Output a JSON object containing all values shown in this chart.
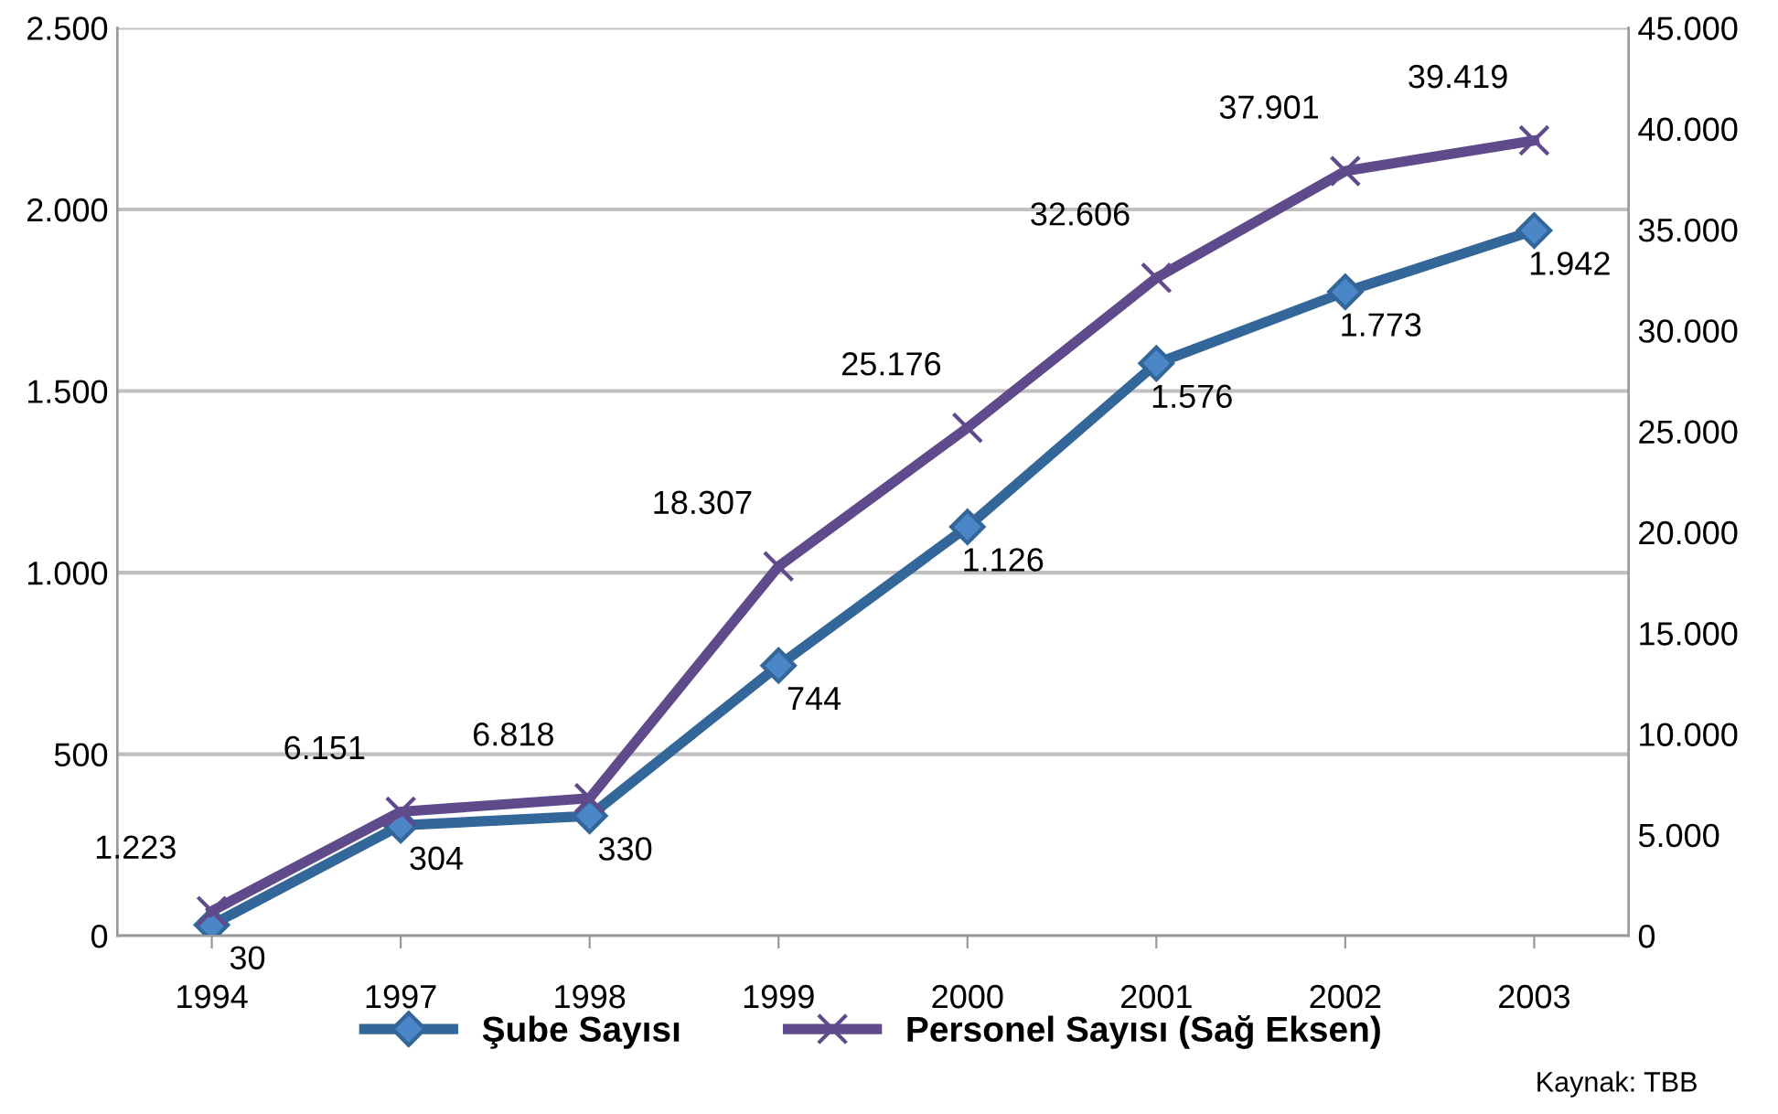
{
  "chart_data": {
    "type": "line",
    "categories": [
      "1994",
      "1997",
      "1998",
      "1999",
      "2000",
      "2001",
      "2002",
      "2003"
    ],
    "series": [
      {
        "name": "Şube Sayısı",
        "color": "#336699",
        "marker": "diamond",
        "values": [
          30,
          304,
          330,
          744,
          1126,
          1576,
          1773,
          1942
        ],
        "value_labels": [
          "30",
          "304",
          "330",
          "744",
          "1.126",
          "1.576",
          "1.773",
          "1.942"
        ]
      },
      {
        "name": "Personel Sayısı (Sağ Eksen)",
        "color": "#5f4b8b",
        "marker": "cross",
        "axis": "y2",
        "values": [
          1223,
          6151,
          6818,
          18307,
          25176,
          32606,
          37901,
          39419
        ],
        "value_labels": [
          "1.223",
          "6.151",
          "6.818",
          "18.307",
          "25.176",
          "32.606",
          "37.901",
          "39.419"
        ]
      }
    ],
    "ylim": [
      0,
      2500
    ],
    "yticks": [
      0,
      500,
      {
        "value": 1000,
        "label": "1.000"
      },
      {
        "value": 1500,
        "label": "1.500"
      },
      {
        "value": 2000,
        "label": "2.000"
      },
      {
        "value": 2500,
        "label": "2.500"
      }
    ],
    "y2lim": [
      0,
      45000
    ],
    "y2ticks": [
      0,
      {
        "value": 5000,
        "label": "5.000"
      },
      {
        "value": 10000,
        "label": "10.000"
      },
      {
        "value": 15000,
        "label": "15.000"
      },
      {
        "value": 20000,
        "label": "20.000"
      },
      {
        "value": 25000,
        "label": "25.000"
      },
      {
        "value": 30000,
        "label": "30.000"
      },
      {
        "value": 35000,
        "label": "35.000"
      },
      {
        "value": 40000,
        "label": "40.000"
      },
      {
        "value": 45000,
        "label": "45.000"
      }
    ],
    "grid": "y",
    "legend": "bottom",
    "line_style": "solid",
    "annotations": [
      "Kaynak: TBB"
    ]
  }
}
